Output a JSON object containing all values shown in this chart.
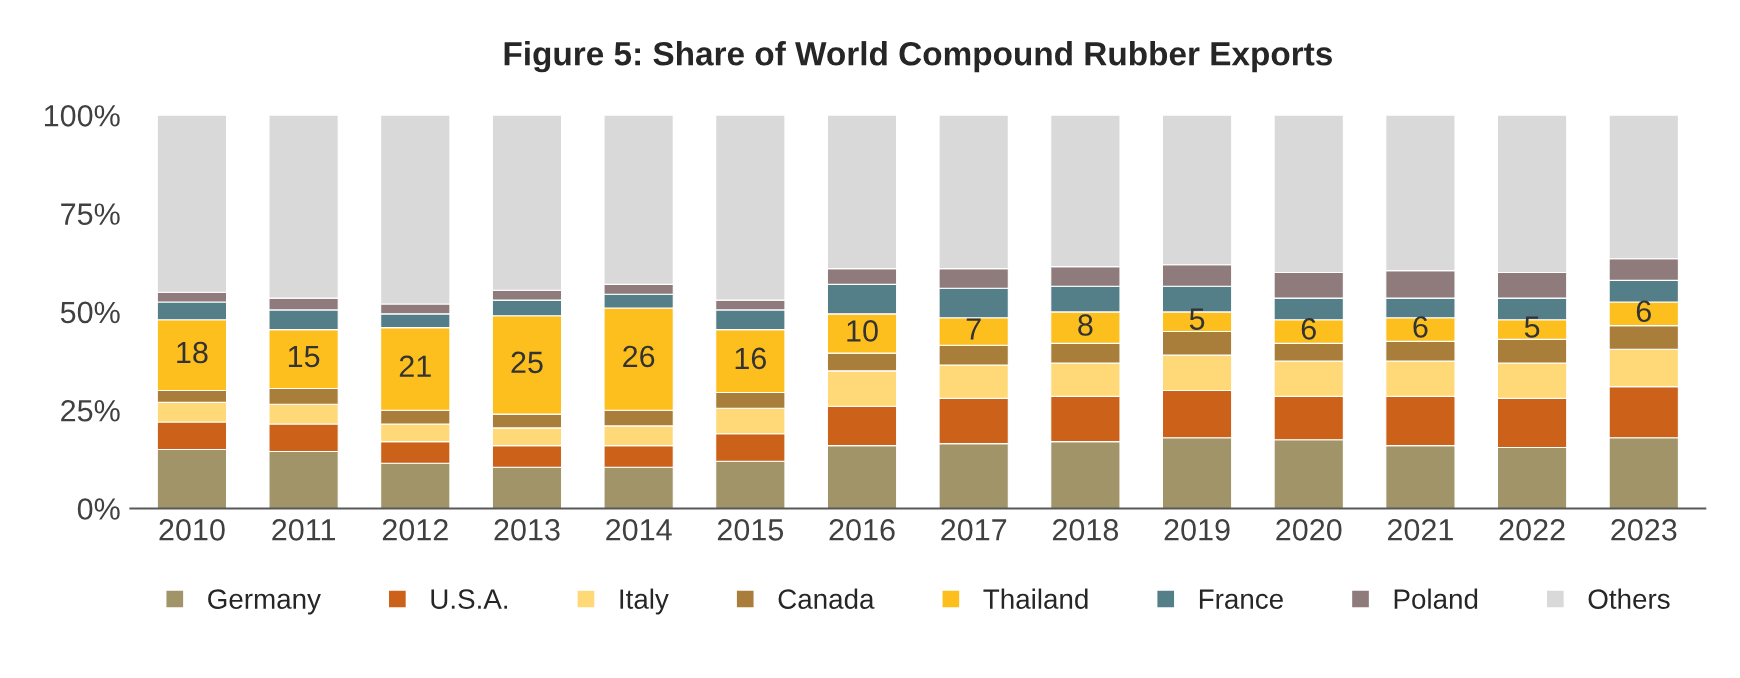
{
  "chart_data": {
    "type": "bar",
    "title": "Figure 5: Share of World Compound Rubber Exports",
    "stacked": true,
    "categories": [
      "2010",
      "2011",
      "2012",
      "2013",
      "2014",
      "2015",
      "2016",
      "2017",
      "2018",
      "2019",
      "2020",
      "2021",
      "2022",
      "2023"
    ],
    "series": [
      {
        "name": "Germany",
        "color": "#a09468",
        "values": [
          15,
          14.5,
          11.5,
          10.5,
          10.5,
          12,
          16,
          16.5,
          17,
          18,
          17.5,
          16,
          15.5,
          18
        ]
      },
      {
        "name": "U.S.A.",
        "color": "#cc6219",
        "values": [
          7,
          7,
          5.5,
          5.5,
          5.5,
          7,
          10,
          11.5,
          11.5,
          12,
          11,
          12.5,
          12.5,
          13
        ]
      },
      {
        "name": "Italy",
        "color": "#ffd878",
        "values": [
          5,
          5,
          4.5,
          4.5,
          5,
          6.5,
          9,
          8.5,
          8.5,
          9,
          9,
          9,
          9,
          9.5
        ]
      },
      {
        "name": "Canada",
        "color": "#a97e3b",
        "values": [
          3,
          4,
          3.5,
          3.5,
          4,
          4,
          4.5,
          5,
          5,
          6,
          4.5,
          5,
          6,
          6
        ]
      },
      {
        "name": "Thailand",
        "color": "#fdbf1e",
        "values": [
          18,
          15,
          21,
          25,
          26,
          16,
          10,
          7,
          8,
          5,
          6,
          6,
          5,
          6
        ],
        "value_labels": [
          "18",
          "15",
          "21",
          "25",
          "26",
          "16",
          "10",
          "7",
          "8",
          "5",
          "6",
          "6",
          "5",
          "6"
        ]
      },
      {
        "name": "France",
        "color": "#557f88",
        "values": [
          4.5,
          5,
          3.5,
          4,
          3.5,
          5,
          7.5,
          7.5,
          6.5,
          6.5,
          5.5,
          5,
          5.5,
          5.5
        ]
      },
      {
        "name": "Poland",
        "color": "#8f7b7b",
        "values": [
          2.5,
          3,
          2.5,
          2.5,
          2.5,
          2.5,
          4,
          5,
          5,
          5.5,
          6.5,
          7,
          6.5,
          5.5
        ]
      },
      {
        "name": "Others",
        "color": "#d9d9d9",
        "values": [
          45,
          46.5,
          48,
          44.5,
          43,
          47,
          39,
          39,
          38.5,
          38,
          40,
          39.5,
          40,
          36.5
        ]
      }
    ],
    "ylim": [
      0,
      100
    ],
    "yticks": [
      {
        "value": 0,
        "label": "0%"
      },
      {
        "value": 25,
        "label": "25%"
      },
      {
        "value": 50,
        "label": "50%"
      },
      {
        "value": 75,
        "label": "75%"
      },
      {
        "value": 100,
        "label": "100%"
      }
    ],
    "grid": false,
    "legend": "bottom"
  }
}
